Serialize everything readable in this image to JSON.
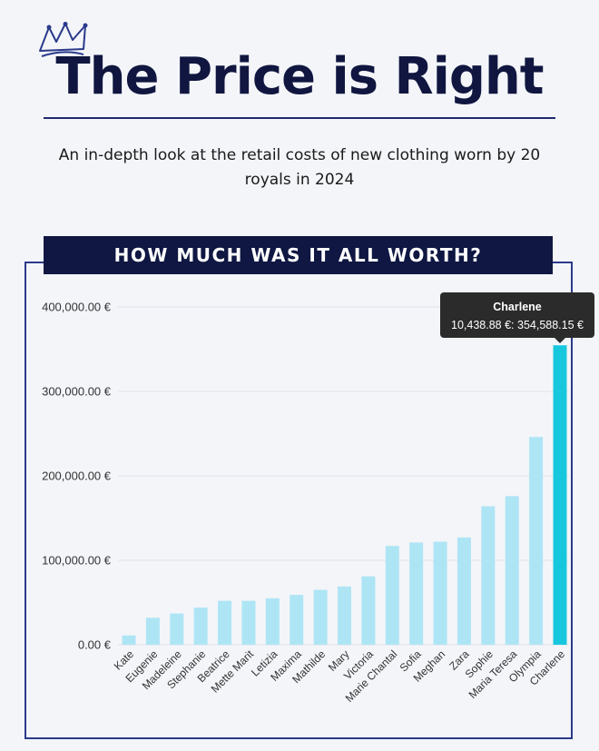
{
  "header": {
    "title": "The Price is Right",
    "subtitle": "An in-depth look at the retail costs of new clothing worn by 20 royals in 2024"
  },
  "banner": {
    "text": "HOW MUCH WAS IT ALL WORTH?"
  },
  "icons": {
    "crown": "crown-icon"
  },
  "colors": {
    "bar": "#aee5f5",
    "highlight": "#17c7dd",
    "title": "#10163f",
    "banner_bg": "#0f1742",
    "frame": "#2a3a8a"
  },
  "tooltip": {
    "name": "Charlene",
    "value": "10,438.88 €: 354,588.15 €"
  },
  "chart_data": {
    "type": "bar",
    "title": "",
    "xlabel": "",
    "ylabel": "",
    "ylim": [
      0,
      400000
    ],
    "yticks": [
      0,
      100000,
      200000,
      300000,
      400000
    ],
    "ytick_labels": [
      "0.00 €",
      "100,000.00 €",
      "200,000.00 €",
      "300,000.00 €",
      "400,000.00 €"
    ],
    "grid": true,
    "highlighted_category": "Charlene",
    "categories": [
      "Kate",
      "Eugenie",
      "Madeleine",
      "Stephanie",
      "Beatrice",
      "Mette Marit",
      "Letizia",
      "Maxima",
      "Mathilde",
      "Mary",
      "Victoria",
      "Marie Chantal",
      "Sofia",
      "Meghan",
      "Zara",
      "Sophie",
      "Maria Teresa",
      "Olympia",
      "Charlene"
    ],
    "values": [
      11000,
      32000,
      37000,
      44000,
      52000,
      52000,
      55000,
      59000,
      65000,
      69000,
      81000,
      117000,
      121000,
      122000,
      127000,
      164000,
      176000,
      246000,
      354588.15
    ]
  }
}
